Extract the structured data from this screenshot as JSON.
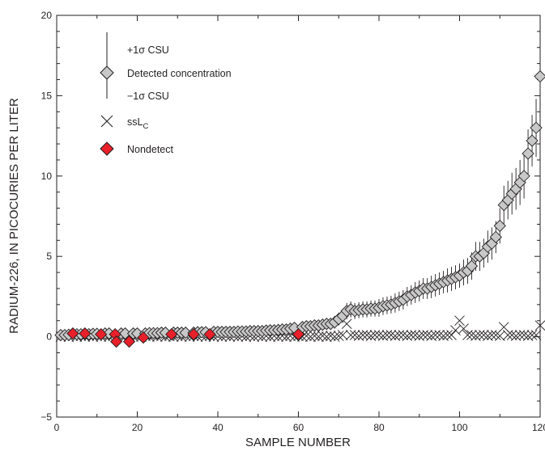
{
  "chart_data": {
    "type": "scatter",
    "xlabel": "SAMPLE NUMBER",
    "ylabel": "RADIUM-226, IN PICOCURIES PER LITER",
    "xlim": [
      0,
      120
    ],
    "ylim": [
      -5,
      20
    ],
    "x_ticks": [
      "0",
      "20",
      "40",
      "60",
      "80",
      "100",
      "120"
    ],
    "y_ticks": [
      "−5",
      "0",
      "5",
      "10",
      "15",
      "20"
    ],
    "legend": {
      "placement": "top-left",
      "plus_csu": "+1σ CSU",
      "detected": "Detected concentration",
      "minus_csu": "−1σ CSU",
      "sslc_main": "ssL",
      "sslc_sub": "C",
      "nondetect": "Nondetect"
    },
    "colors": {
      "detected_fill": "#c8c8c8",
      "nondetect_fill": "#e8202a",
      "marker_stroke": "#231f20"
    },
    "series": [
      {
        "name": "Detected concentration",
        "marker": "diamond",
        "x": [
          1,
          2,
          3,
          5,
          6,
          8,
          9,
          10,
          12,
          13,
          16,
          17,
          19,
          20,
          22,
          23,
          24,
          25,
          26,
          27,
          29,
          30,
          31,
          32,
          34,
          35,
          36,
          37,
          39,
          40,
          41,
          42,
          43,
          44,
          45,
          46,
          47,
          48,
          49,
          50,
          51,
          52,
          53,
          54,
          55,
          56,
          57,
          58,
          59,
          61,
          62,
          63,
          64,
          65,
          66,
          67,
          68,
          69,
          70,
          71,
          72,
          73,
          74,
          75,
          76,
          77,
          78,
          79,
          80,
          81,
          82,
          83,
          84,
          85,
          86,
          87,
          88,
          89,
          90,
          91,
          92,
          93,
          94,
          95,
          96,
          97,
          98,
          99,
          100,
          101,
          102,
          103,
          104,
          105,
          106,
          107,
          108,
          109,
          110,
          111,
          112,
          113,
          114,
          115,
          116,
          117,
          118,
          119,
          120
        ],
        "y": [
          0.1,
          0.1,
          0.12,
          0.15,
          0.15,
          0.15,
          0.18,
          0.18,
          0.2,
          0.2,
          0.2,
          0.2,
          0.2,
          0.2,
          0.2,
          0.22,
          0.22,
          0.22,
          0.25,
          0.25,
          0.25,
          0.25,
          0.25,
          0.25,
          0.25,
          0.28,
          0.28,
          0.28,
          0.3,
          0.3,
          0.3,
          0.3,
          0.3,
          0.3,
          0.32,
          0.32,
          0.32,
          0.35,
          0.35,
          0.35,
          0.35,
          0.38,
          0.4,
          0.4,
          0.42,
          0.45,
          0.45,
          0.5,
          0.55,
          0.6,
          0.65,
          0.65,
          0.7,
          0.7,
          0.75,
          0.8,
          0.8,
          0.9,
          1.1,
          1.3,
          1.6,
          1.7,
          1.6,
          1.65,
          1.7,
          1.7,
          1.75,
          1.75,
          1.8,
          1.9,
          1.95,
          2.0,
          2.1,
          2.2,
          2.3,
          2.5,
          2.6,
          2.75,
          2.85,
          3.0,
          3.0,
          3.1,
          3.2,
          3.3,
          3.4,
          3.5,
          3.6,
          3.7,
          3.8,
          4.0,
          4.1,
          4.4,
          5.0,
          5.0,
          5.2,
          5.6,
          5.8,
          6.2,
          6.9,
          8.2,
          8.5,
          8.9,
          9.2,
          9.6,
          10.0,
          11.4,
          12.2,
          13.0,
          16.2
        ],
        "csu": [
          0.3,
          0.3,
          0.3,
          0.3,
          0.3,
          0.3,
          0.3,
          0.3,
          0.3,
          0.3,
          0.3,
          0.3,
          0.3,
          0.3,
          0.3,
          0.3,
          0.3,
          0.3,
          0.3,
          0.3,
          0.3,
          0.3,
          0.3,
          0.3,
          0.3,
          0.3,
          0.3,
          0.3,
          0.3,
          0.3,
          0.3,
          0.3,
          0.3,
          0.3,
          0.3,
          0.3,
          0.3,
          0.3,
          0.3,
          0.3,
          0.3,
          0.3,
          0.3,
          0.3,
          0.3,
          0.3,
          0.3,
          0.3,
          0.3,
          0.35,
          0.35,
          0.35,
          0.35,
          0.35,
          0.35,
          0.35,
          0.35,
          0.4,
          0.4,
          0.45,
          0.5,
          0.5,
          0.5,
          0.5,
          0.5,
          0.5,
          0.5,
          0.5,
          0.55,
          0.55,
          0.55,
          0.55,
          0.6,
          0.6,
          0.6,
          0.6,
          0.6,
          0.65,
          0.65,
          0.65,
          0.65,
          0.7,
          0.7,
          0.7,
          0.7,
          0.75,
          0.75,
          0.75,
          0.75,
          0.8,
          0.8,
          0.85,
          0.9,
          0.9,
          0.9,
          1.0,
          1.0,
          1.0,
          1.1,
          1.2,
          1.2,
          1.3,
          1.3,
          1.4,
          1.4,
          1.5,
          1.6,
          1.8,
          2.4
        ]
      },
      {
        "name": "ssLC",
        "marker": "x",
        "x": [
          1,
          2,
          3,
          4,
          5,
          6,
          7,
          8,
          9,
          10,
          11,
          12,
          13,
          14,
          15,
          16,
          17,
          18,
          19,
          20,
          21,
          22,
          23,
          24,
          25,
          26,
          27,
          28,
          29,
          30,
          31,
          32,
          33,
          34,
          35,
          36,
          37,
          38,
          39,
          40,
          41,
          42,
          43,
          44,
          45,
          46,
          47,
          48,
          49,
          50,
          51,
          52,
          53,
          54,
          55,
          56,
          57,
          58,
          59,
          60,
          61,
          62,
          63,
          64,
          65,
          66,
          67,
          68,
          69,
          70,
          71,
          72,
          73,
          74,
          75,
          76,
          77,
          78,
          79,
          80,
          81,
          82,
          83,
          84,
          85,
          86,
          87,
          88,
          89,
          90,
          91,
          92,
          93,
          94,
          95,
          96,
          97,
          98,
          99,
          100,
          101,
          102,
          103,
          104,
          105,
          106,
          107,
          108,
          109,
          110,
          111,
          112,
          113,
          114,
          115,
          116,
          117,
          118,
          119,
          120
        ],
        "y": [
          0.0,
          0.05,
          0.0,
          0.05,
          0.0,
          0.05,
          0.0,
          0.05,
          0.0,
          0.05,
          0.0,
          0.05,
          0.0,
          0.05,
          0.0,
          0.05,
          0.0,
          0.05,
          0.0,
          0.05,
          0.0,
          0.05,
          0.0,
          0.05,
          0.0,
          0.05,
          0.0,
          0.05,
          0.0,
          0.05,
          0.0,
          0.05,
          0.0,
          0.05,
          0.0,
          0.05,
          0.0,
          0.05,
          0.0,
          0.05,
          0.0,
          0.05,
          0.0,
          0.05,
          0.0,
          0.05,
          0.0,
          0.05,
          0.0,
          0.05,
          0.0,
          0.05,
          0.0,
          0.05,
          0.0,
          0.05,
          0.0,
          0.05,
          0.0,
          0.05,
          0.0,
          0.05,
          0.0,
          0.05,
          0.0,
          0.05,
          0.0,
          0.05,
          0.0,
          0.05,
          0.1,
          0.8,
          0.1,
          0.1,
          0.05,
          0.1,
          0.1,
          0.05,
          0.1,
          0.1,
          0.05,
          0.1,
          0.1,
          0.05,
          0.1,
          0.1,
          0.05,
          0.1,
          0.1,
          0.05,
          0.1,
          0.1,
          0.05,
          0.1,
          0.1,
          0.05,
          0.1,
          0.1,
          0.4,
          1.0,
          0.5,
          0.1,
          0.1,
          0.05,
          0.1,
          0.1,
          0.05,
          0.1,
          0.1,
          0.05,
          0.6,
          0.1,
          0.1,
          0.05,
          0.1,
          0.1,
          0.05,
          0.1,
          0.1,
          0.7
        ]
      },
      {
        "name": "Nondetect",
        "marker": "diamond",
        "x": [
          4,
          7,
          11,
          14.5,
          14.8,
          18,
          21.5,
          28.5,
          34,
          38,
          60
        ],
        "y": [
          0.2,
          0.2,
          0.15,
          0.15,
          -0.3,
          -0.3,
          -0.05,
          0.15,
          0.15,
          0.15,
          0.15
        ]
      }
    ]
  }
}
